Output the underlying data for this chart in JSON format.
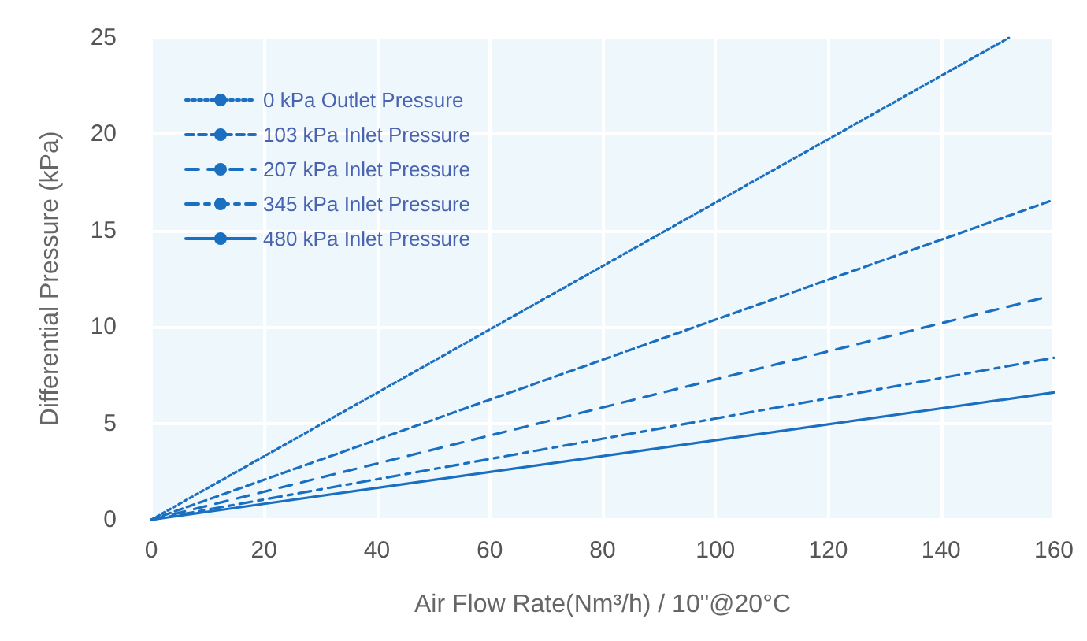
{
  "chart_data": {
    "type": "line",
    "xlabel": "Air Flow Rate(Nm³/h) / 10\"@20°C",
    "ylabel": "Differential Pressure (kPa)",
    "xlim": [
      0,
      160
    ],
    "xticks": [
      0,
      20,
      40,
      60,
      80,
      100,
      120,
      140,
      160
    ],
    "ylim": [
      0,
      25
    ],
    "yticks": [
      0,
      5,
      10,
      15,
      20,
      25
    ],
    "grid": true,
    "legend": "top left",
    "marker": "none",
    "series": [
      {
        "name": "0 kPa Outlet Pressure",
        "color": "#1a6fc0",
        "line_style": "dotted",
        "x": [
          0,
          152
        ],
        "values": [
          0,
          25
        ]
      },
      {
        "name": "103 kPa Inlet Pressure",
        "color": "#1a6fc0",
        "line_style": "dashed",
        "x": [
          0,
          160
        ],
        "values": [
          0,
          16.6
        ]
      },
      {
        "name": "207 kPa Inlet Pressure",
        "color": "#1a6fc0",
        "line_style": "dashed",
        "x": [
          0,
          158
        ],
        "values": [
          0,
          11.5
        ]
      },
      {
        "name": "345 kPa Inlet Pressure",
        "color": "#1a6fc0",
        "line_style": "dashed",
        "x": [
          0,
          160
        ],
        "values": [
          0,
          8.4
        ]
      },
      {
        "name": "480 kPa Inlet Pressure",
        "color": "#1a6fc0",
        "line_style": "solid",
        "x": [
          0,
          160
        ],
        "values": [
          0,
          6.6
        ]
      }
    ]
  }
}
